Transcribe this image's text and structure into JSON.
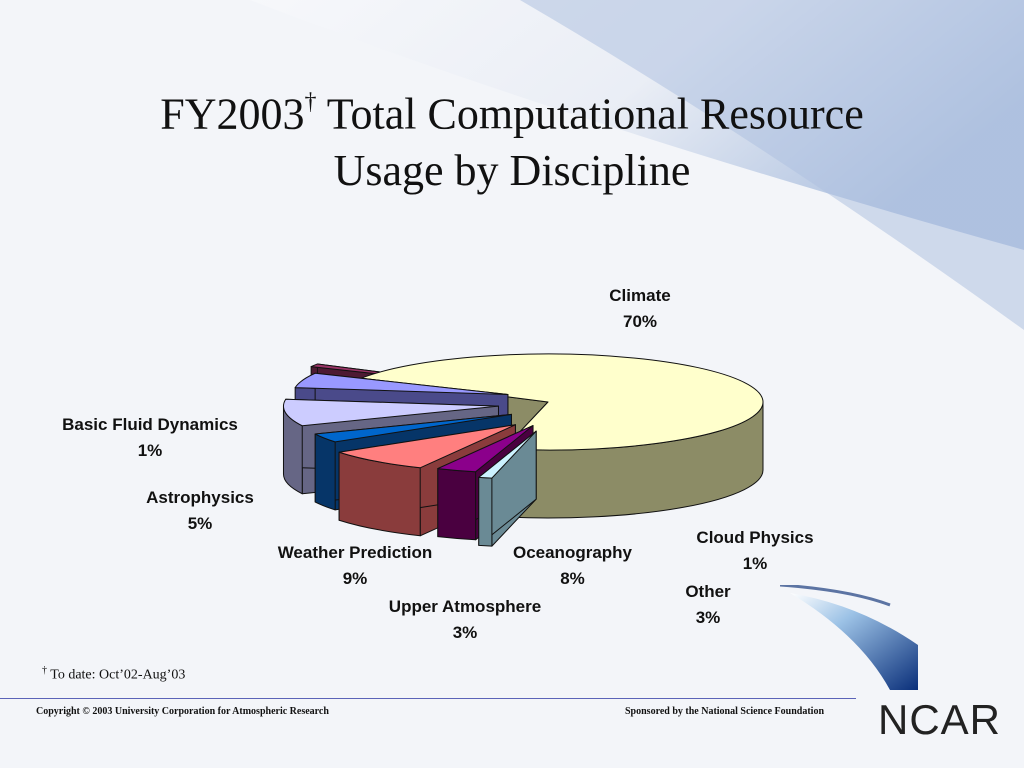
{
  "slide": {
    "title_line1_main": "FY2003",
    "title_dagger": "†",
    "title_line1_rest": " Total Computational Resource",
    "title_line2": "Usage by Discipline",
    "footnote_marker": "†",
    "footnote_text": " To date: Oct’02-Aug’03",
    "copyright": "Copyright © 2003 University Corporation for Atmospheric Research",
    "sponsor": "Sponsored by the National Science Foundation",
    "logo": "NCAR"
  },
  "colors": {
    "background_light": "#f3f5f9",
    "background_blue": "#a9bedf",
    "footer_line": "#5b63b8"
  },
  "chart_data": {
    "type": "pie",
    "style": "3d-exploded",
    "title": "",
    "slices": [
      {
        "label": "Climate",
        "value": 70,
        "value_label": "70%",
        "color": "#ffffcc",
        "side": "#8c8c66"
      },
      {
        "label": "Cloud Physics",
        "value": 1,
        "value_label": "1%",
        "color": "#ccf2ff",
        "side": "#6a8a95"
      },
      {
        "label": "Other",
        "value": 3,
        "value_label": "3%",
        "color": "#8b008b",
        "side": "#4a0040"
      },
      {
        "label": "Oceanography",
        "value": 8,
        "value_label": "8%",
        "color": "#ff7f7f",
        "side": "#8a3c3c"
      },
      {
        "label": "Upper Atmosphere",
        "value": 3,
        "value_label": "3%",
        "color": "#0066cc",
        "side": "#063568"
      },
      {
        "label": "Weather Prediction",
        "value": 9,
        "value_label": "9%",
        "color": "#ccccff",
        "side": "#666685"
      },
      {
        "label": "Astrophysics",
        "value": 5,
        "value_label": "5%",
        "color": "#9999ff",
        "side": "#4a4a8a"
      },
      {
        "label": "Basic Fluid Dynamics",
        "value": 1,
        "value_label": "1%",
        "color": "#993366",
        "side": "#4d1a33"
      }
    ]
  }
}
